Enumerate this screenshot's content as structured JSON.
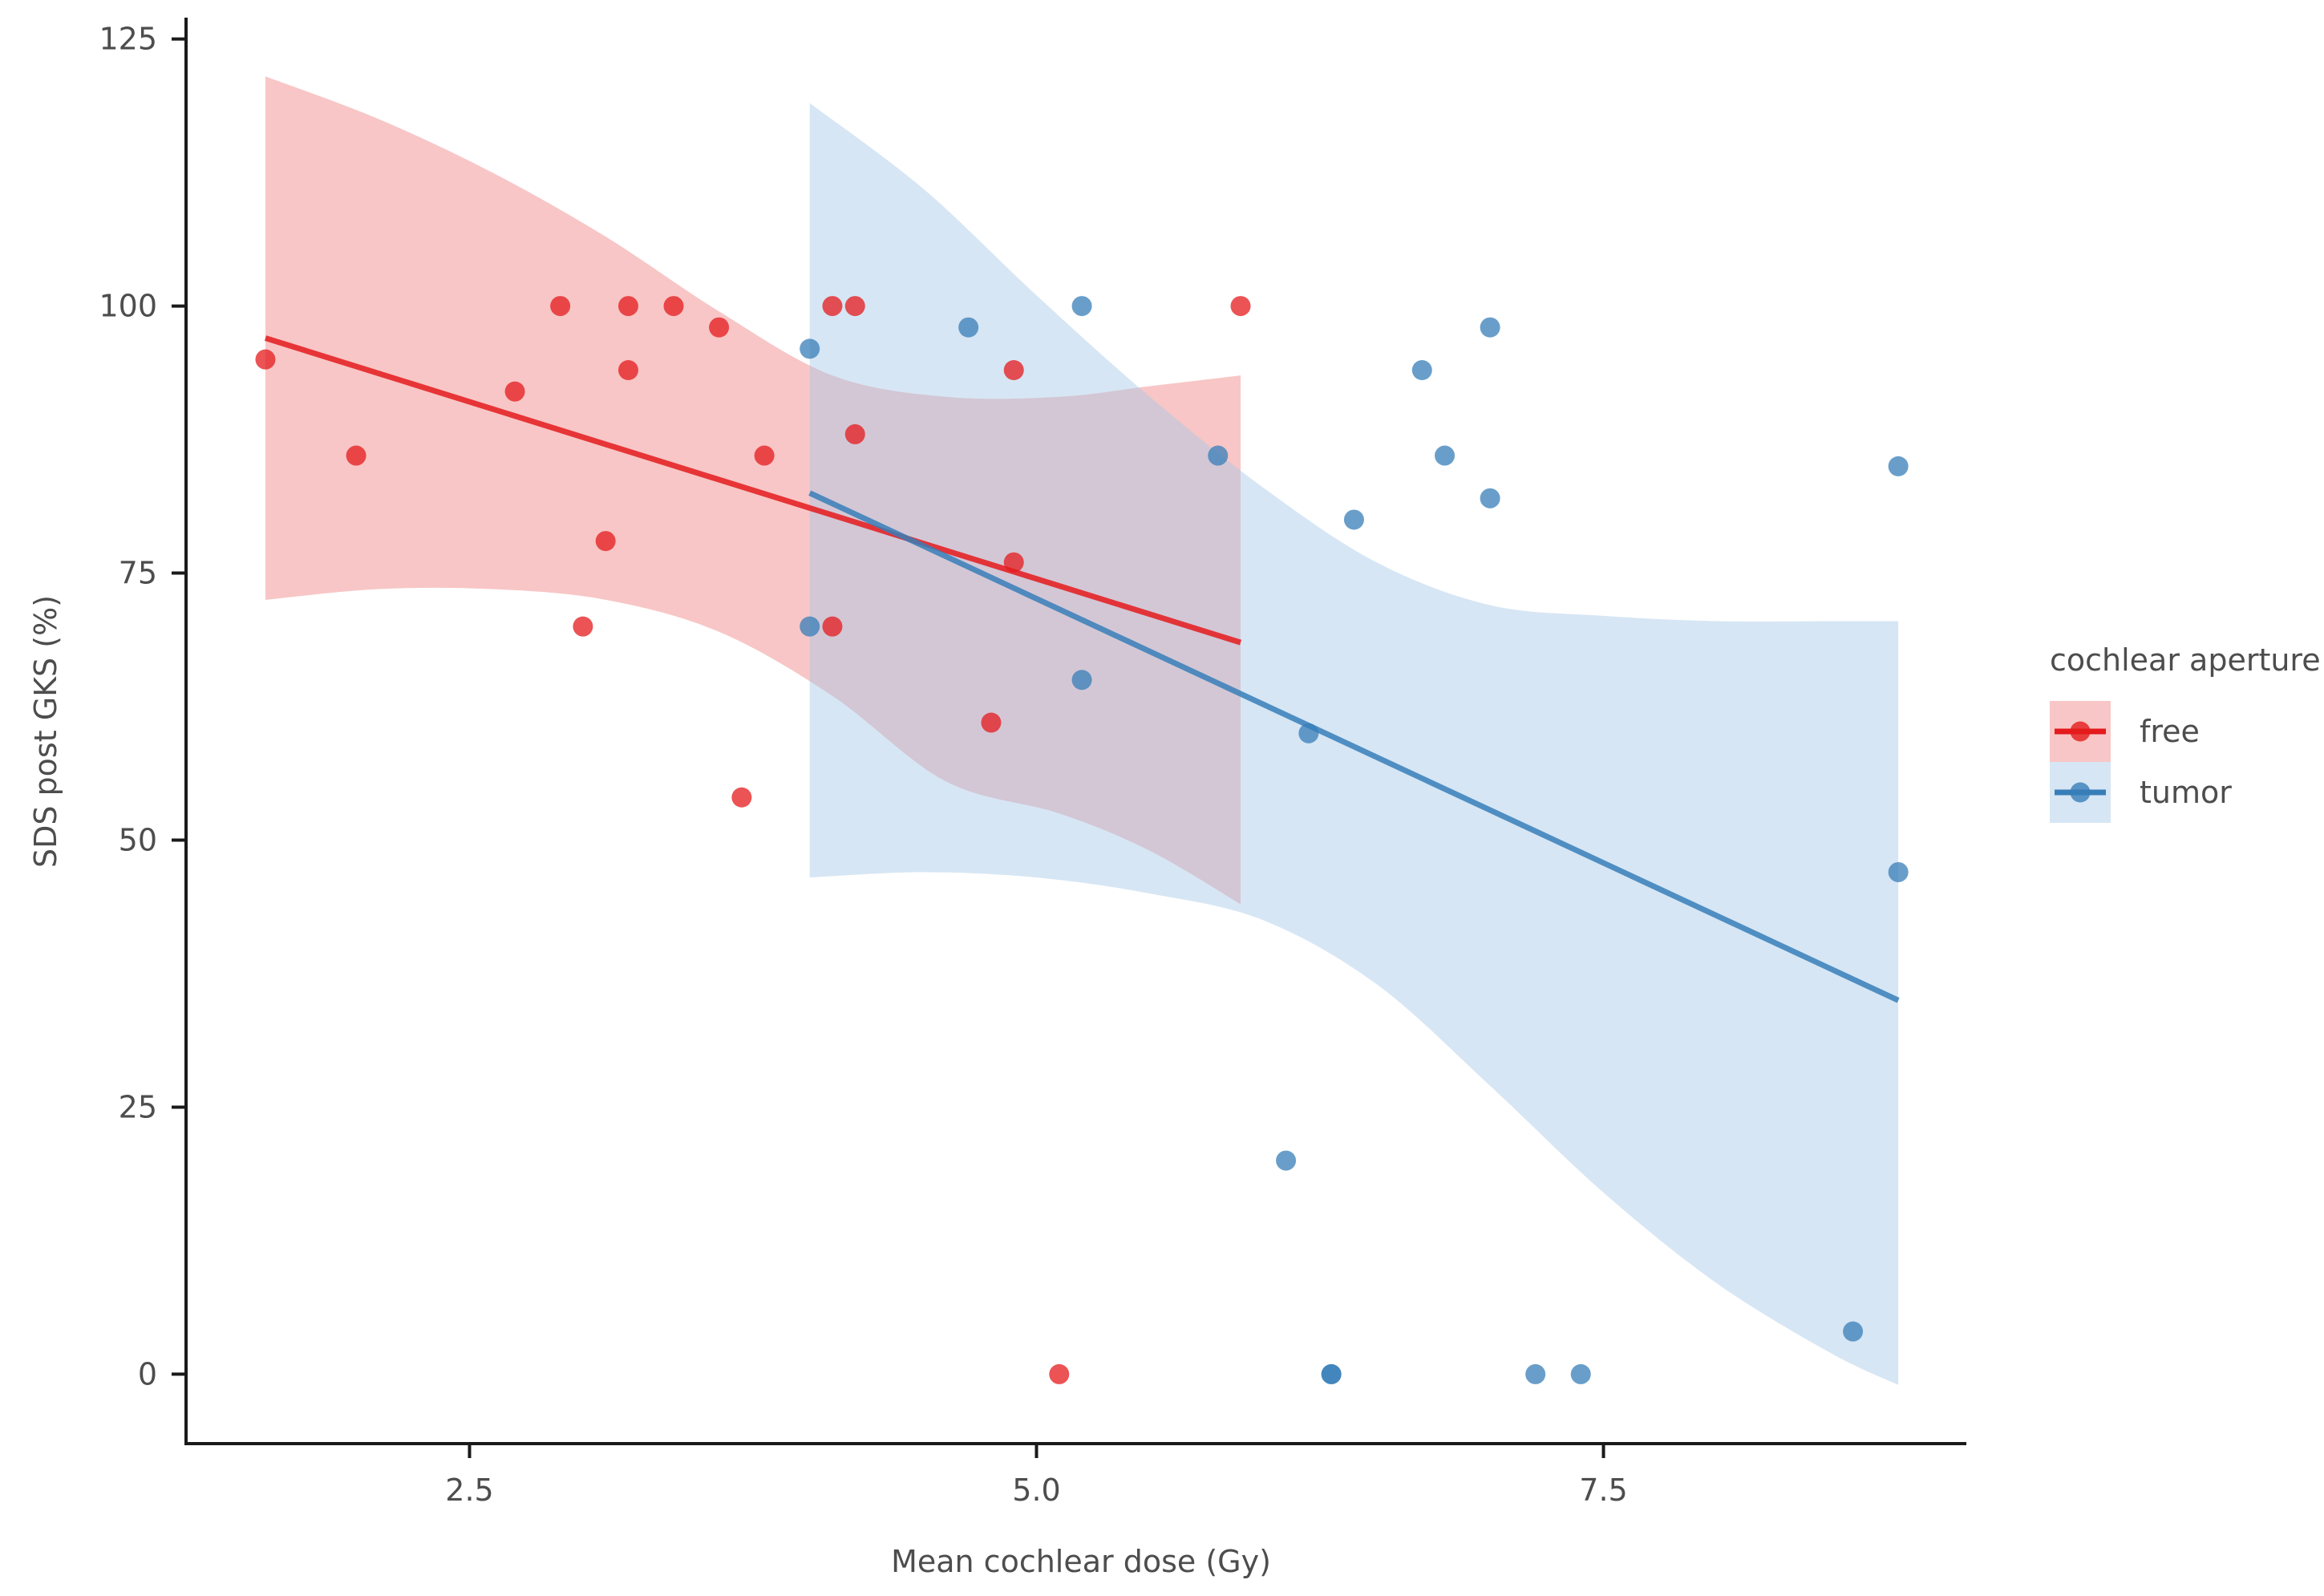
{
  "chart_data": {
    "type": "scatter",
    "title": "",
    "xlabel": "Mean cochlear dose (Gy)",
    "ylabel": "SDS post GKS (%)",
    "xlim": [
      1.25,
      9.1
    ],
    "ylim": [
      -6.5,
      127
    ],
    "x_ticks": [
      2.5,
      5.0,
      7.5
    ],
    "x_tick_labels": [
      "2.5",
      "5.0",
      "7.5"
    ],
    "y_ticks": [
      0,
      25,
      50,
      75,
      100,
      125
    ],
    "y_tick_labels": [
      "0",
      "25",
      "50",
      "75",
      "100",
      "125"
    ],
    "grid": false,
    "legend": {
      "title": "cochlear aperture",
      "position": "right",
      "entries": [
        "free",
        "tumor"
      ]
    },
    "series": [
      {
        "name": "free",
        "color": "#E41A1C",
        "band_color": "#F08080",
        "points": [
          {
            "x": 1.6,
            "y": 95
          },
          {
            "x": 2.0,
            "y": 86
          },
          {
            "x": 2.7,
            "y": 92
          },
          {
            "x": 2.9,
            "y": 100
          },
          {
            "x": 3.0,
            "y": 70
          },
          {
            "x": 3.1,
            "y": 78
          },
          {
            "x": 3.2,
            "y": 100
          },
          {
            "x": 3.2,
            "y": 94
          },
          {
            "x": 3.4,
            "y": 100
          },
          {
            "x": 3.6,
            "y": 98
          },
          {
            "x": 3.7,
            "y": 54
          },
          {
            "x": 3.8,
            "y": 86
          },
          {
            "x": 4.1,
            "y": 100
          },
          {
            "x": 4.1,
            "y": 70
          },
          {
            "x": 4.2,
            "y": 100
          },
          {
            "x": 4.2,
            "y": 88
          },
          {
            "x": 4.8,
            "y": 61
          },
          {
            "x": 4.9,
            "y": 94
          },
          {
            "x": 4.9,
            "y": 76
          },
          {
            "x": 5.1,
            "y": 0
          },
          {
            "x": 5.9,
            "y": 100
          }
        ],
        "fit": {
          "x": [
            1.6,
            5.9
          ],
          "y": [
            97,
            68.5
          ]
        },
        "ci": {
          "x": [
            1.6,
            2.1,
            2.6,
            3.1,
            3.6,
            4.1,
            4.6,
            5.1,
            5.5,
            5.9
          ],
          "upper": [
            121.5,
            117.5,
            112.5,
            106.5,
            99.5,
            93.5,
            91.5,
            91.5,
            92.5,
            93.5
          ],
          "lower": [
            72.5,
            73.5,
            73.5,
            72.5,
            69.5,
            63.5,
            55.5,
            52.5,
            49.0,
            44.0
          ]
        }
      },
      {
        "name": "tumor",
        "color": "#377EB8",
        "band_color": "#A6C8E6",
        "points": [
          {
            "x": 4.0,
            "y": 96
          },
          {
            "x": 4.0,
            "y": 70
          },
          {
            "x": 4.7,
            "y": 98
          },
          {
            "x": 5.2,
            "y": 100
          },
          {
            "x": 5.2,
            "y": 65
          },
          {
            "x": 5.8,
            "y": 86
          },
          {
            "x": 6.1,
            "y": 20
          },
          {
            "x": 6.2,
            "y": 60
          },
          {
            "x": 6.3,
            "y": 0
          },
          {
            "x": 6.3,
            "y": 0
          },
          {
            "x": 6.4,
            "y": 80
          },
          {
            "x": 6.7,
            "y": 94
          },
          {
            "x": 6.8,
            "y": 86
          },
          {
            "x": 7.0,
            "y": 98
          },
          {
            "x": 7.0,
            "y": 82
          },
          {
            "x": 7.2,
            "y": 0
          },
          {
            "x": 7.4,
            "y": 0
          },
          {
            "x": 8.6,
            "y": 4
          },
          {
            "x": 8.8,
            "y": 85
          },
          {
            "x": 8.8,
            "y": 47
          }
        ],
        "fit": {
          "x": [
            4.0,
            8.8
          ],
          "y": [
            82.5,
            35
          ]
        },
        "ci": {
          "x": [
            4.0,
            4.5,
            5.0,
            5.5,
            6.0,
            6.5,
            7.0,
            7.5,
            8.0,
            8.5,
            8.8
          ],
          "upper": [
            119,
            111,
            101,
            91.5,
            83,
            76,
            72,
            71,
            70.5,
            70.5,
            70.5
          ],
          "lower": [
            46.5,
            47,
            46.5,
            45,
            42.5,
            36.5,
            27,
            17,
            8.5,
            2,
            -1
          ]
        }
      }
    ]
  }
}
